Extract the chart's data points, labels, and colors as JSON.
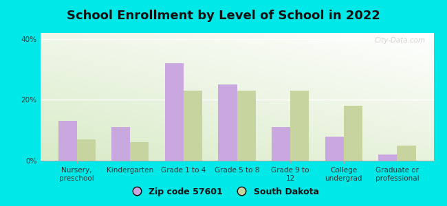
{
  "title": "School Enrollment by Level of School in 2022",
  "categories": [
    "Nursery,\npreschool",
    "Kindergarten",
    "Grade 1 to 4",
    "Grade 5 to 8",
    "Grade 9 to\n12",
    "College\nundergrad",
    "Graduate or\nprofessional"
  ],
  "zip_values": [
    13,
    11,
    32,
    25,
    11,
    8,
    2
  ],
  "sd_values": [
    7,
    6,
    23,
    23,
    23,
    18,
    5
  ],
  "zip_color": "#c9a8e0",
  "sd_color": "#c8d4a0",
  "background_outer": "#00e8e8",
  "background_inner_bottom": "#d4e8b0",
  "background_inner_top": "#f8fef8",
  "title_fontsize": 13,
  "tick_fontsize": 7.5,
  "legend_fontsize": 9,
  "ylim": [
    0,
    42
  ],
  "yticks": [
    0,
    20,
    40
  ],
  "ytick_labels": [
    "0%",
    "20%",
    "40%"
  ],
  "bar_width": 0.35,
  "legend_label_zip": "Zip code 57601",
  "legend_label_sd": "South Dakota",
  "watermark": "City-Data.com"
}
